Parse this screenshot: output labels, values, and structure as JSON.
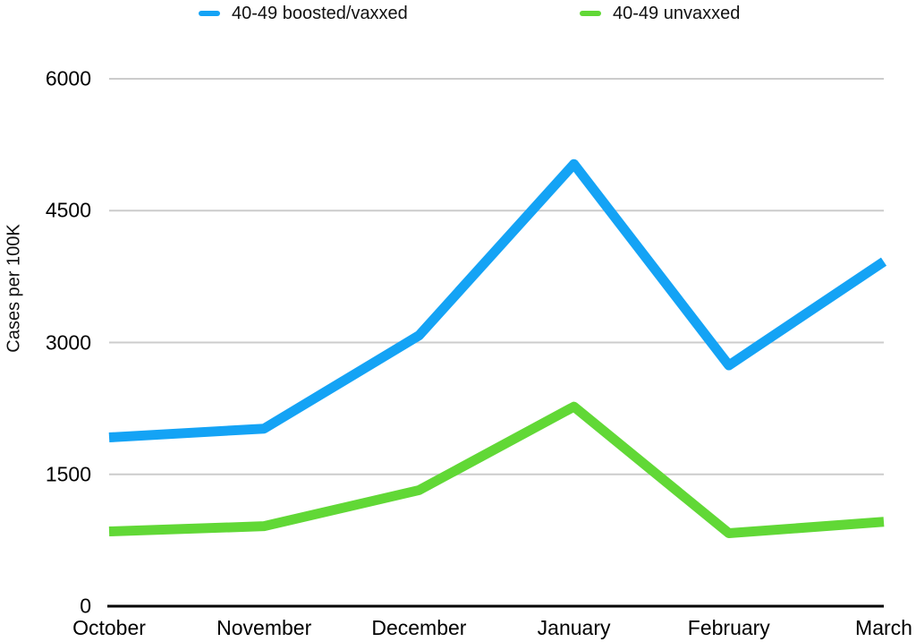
{
  "chart_data": {
    "type": "line",
    "title": "",
    "xlabel": "",
    "ylabel": "Cases per 100K",
    "categories": [
      "October",
      "November",
      "December",
      "January",
      "February",
      "March"
    ],
    "series": [
      {
        "name": "40-49 boosted/vaxxed",
        "color": "#14A3F5",
        "values": [
          1920,
          2020,
          3080,
          5030,
          2740,
          3920
        ]
      },
      {
        "name": "40-49 unvaxxed",
        "color": "#61D836",
        "values": [
          850,
          910,
          1320,
          2270,
          830,
          960
        ]
      }
    ],
    "ylim": [
      0,
      6000
    ],
    "yticks": [
      6000,
      4500,
      3000,
      1500,
      0
    ],
    "grid": true,
    "legend_position": "top",
    "grid_color": "#CCCCCC",
    "axis_color": "#000000"
  }
}
